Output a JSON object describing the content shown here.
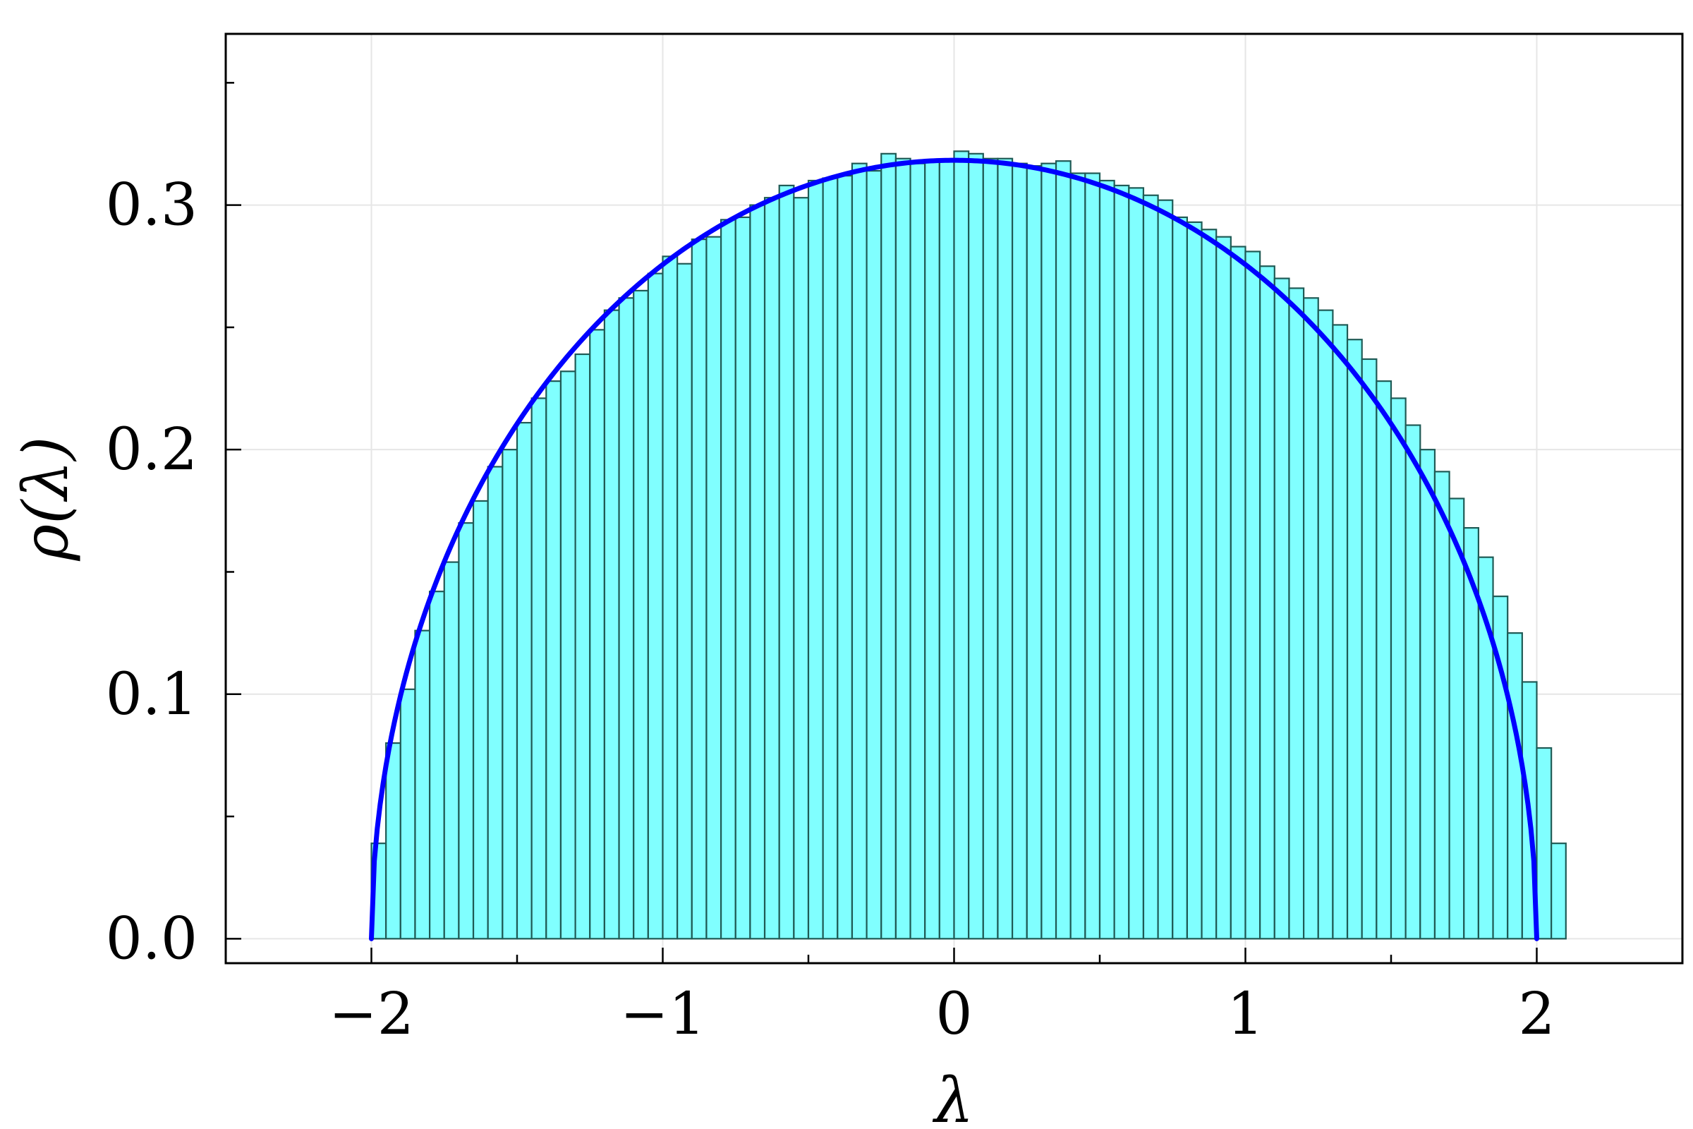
{
  "chart_data": {
    "type": "bar",
    "xlabel": "λ",
    "ylabel": "ρ(λ)",
    "xlim": [
      -2.5,
      2.5
    ],
    "ylim": [
      -0.01,
      0.37
    ],
    "x_ticks": [
      -2,
      -1,
      0,
      1,
      2
    ],
    "x_tick_labels": [
      "−2",
      "−1",
      "0",
      "1",
      "2"
    ],
    "y_ticks": [
      0.0,
      0.1,
      0.2,
      0.3
    ],
    "y_tick_labels": [
      "0.0",
      "0.1",
      "0.2",
      "0.3"
    ],
    "grid": true,
    "bin_width": 0.05,
    "bin_start": -2.0,
    "histogram_counts": [
      0.039,
      0.08,
      0.102,
      0.126,
      0.142,
      0.154,
      0.17,
      0.179,
      0.193,
      0.2,
      0.211,
      0.221,
      0.228,
      0.232,
      0.239,
      0.249,
      0.257,
      0.262,
      0.265,
      0.272,
      0.279,
      0.276,
      0.286,
      0.287,
      0.294,
      0.295,
      0.3,
      0.303,
      0.308,
      0.303,
      0.31,
      0.311,
      0.312,
      0.317,
      0.314,
      0.321,
      0.319,
      0.317,
      0.318,
      0.318,
      0.322,
      0.321,
      0.319,
      0.319,
      0.317,
      0.316,
      0.317,
      0.318,
      0.313,
      0.313,
      0.31,
      0.308,
      0.307,
      0.304,
      0.302,
      0.295,
      0.293,
      0.29,
      0.287,
      0.283,
      0.281,
      0.275,
      0.27,
      0.266,
      0.262,
      0.257,
      0.251,
      0.245,
      0.237,
      0.228,
      0.221,
      0.21,
      0.2,
      0.191,
      0.18,
      0.168,
      0.156,
      0.14,
      0.125,
      0.105,
      0.078,
      0.039
    ],
    "bar_fill_color": "#80ffff",
    "bar_edge_color": "#1f5a55",
    "curve_color": "#0000ff",
    "curve": {
      "name": "",
      "formula": "sqrt(4 - x^2) / (2*pi)",
      "x_range": [
        -2,
        2
      ]
    }
  }
}
